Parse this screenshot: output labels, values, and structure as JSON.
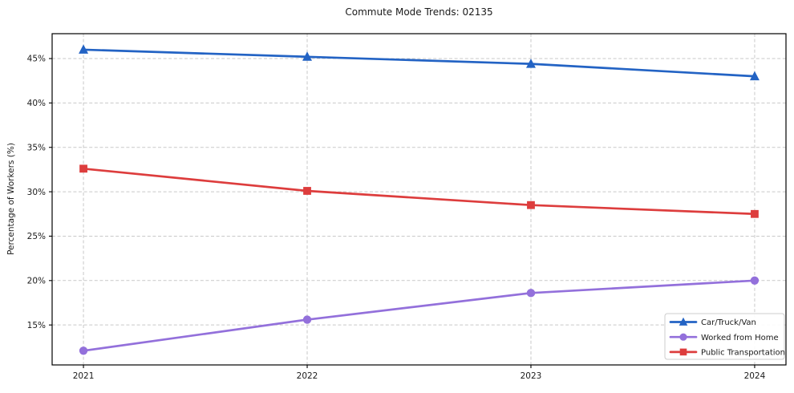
{
  "chart_data": {
    "type": "line",
    "title": "Commute Mode Trends: 02135",
    "xlabel": "",
    "ylabel": "Percentage of Workers (%)",
    "x": [
      2021,
      2022,
      2023,
      2024
    ],
    "x_tick_labels": [
      "2021",
      "2022",
      "2023",
      "2024"
    ],
    "y_ticks": [
      15,
      20,
      25,
      30,
      35,
      40,
      45
    ],
    "y_tick_labels": [
      "15%",
      "20%",
      "25%",
      "30%",
      "35%",
      "40%",
      "45%"
    ],
    "xlim": [
      2020.86,
      2024.14
    ],
    "ylim": [
      10.5,
      47.8
    ],
    "grid": true,
    "grid_style": "dashed",
    "legend_position": "lower right",
    "series": [
      {
        "name": "Car/Truck/Van",
        "marker": "triangle",
        "color": "#2363c4",
        "values": [
          46.0,
          45.2,
          44.4,
          43.0
        ]
      },
      {
        "name": "Worked from Home",
        "marker": "circle",
        "color": "#9370db",
        "values": [
          12.1,
          15.6,
          18.6,
          20.0
        ]
      },
      {
        "name": "Public Transportation",
        "marker": "square",
        "color": "#dd3d3d",
        "values": [
          32.6,
          30.1,
          28.5,
          27.5
        ]
      }
    ]
  },
  "style": {
    "background": "#ffffff",
    "grid_color": "#c9c9c9",
    "spine_color": "#000000",
    "text_color": "#1a1a1a",
    "legend_border": "#cccccc",
    "legend_background": "#ffffff"
  }
}
